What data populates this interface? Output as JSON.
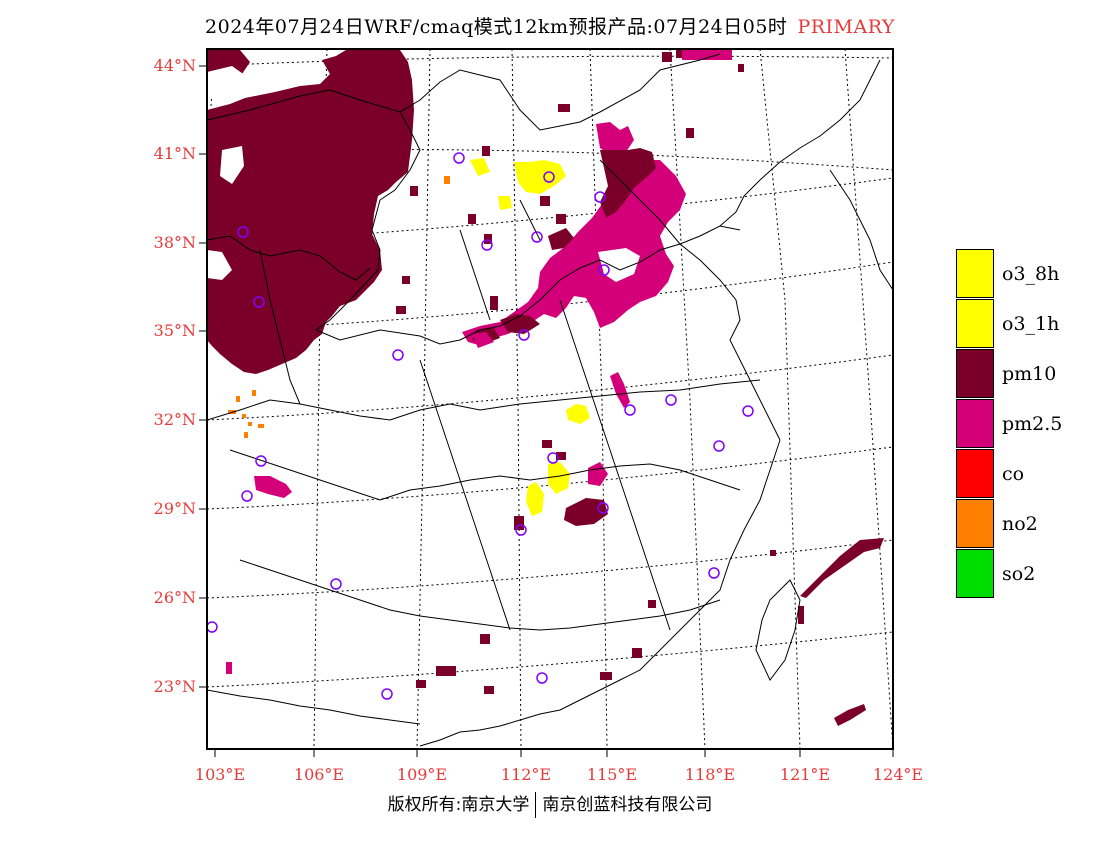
{
  "header": {
    "title": "2024年07月24日WRF/cmaq模式12km预报产品:07月24日05时",
    "primary_label": "PRIMARY"
  },
  "map": {
    "lat_labels": [
      "44°N",
      "41°N",
      "38°N",
      "35°N",
      "32°N",
      "29°N",
      "26°N",
      "23°N"
    ],
    "lon_labels": [
      "103°E",
      "106°E",
      "109°E",
      "112°E",
      "115°E",
      "118°E",
      "121°E",
      "124°E"
    ],
    "colors": {
      "pm10": "#7a0029",
      "pm25": "#d4007a",
      "o3": "#ffff00",
      "no2": "#ff7f00",
      "station": "#8000ff",
      "graticule": "#000000",
      "boundary": "#000000"
    }
  },
  "legend": {
    "items": [
      {
        "label": "o3_8h",
        "color": "#ffff00"
      },
      {
        "label": "o3_1h",
        "color": "#ffff00"
      },
      {
        "label": "pm10",
        "color": "#7a0029"
      },
      {
        "label": "pm2.5",
        "color": "#d4007a"
      },
      {
        "label": "co",
        "color": "#ff0000"
      },
      {
        "label": "no2",
        "color": "#ff7f00"
      },
      {
        "label": "so2",
        "color": "#00dd00"
      }
    ]
  },
  "footer": {
    "left": "版权所有:南京大学",
    "right": "南京创蓝科技有限公司"
  }
}
